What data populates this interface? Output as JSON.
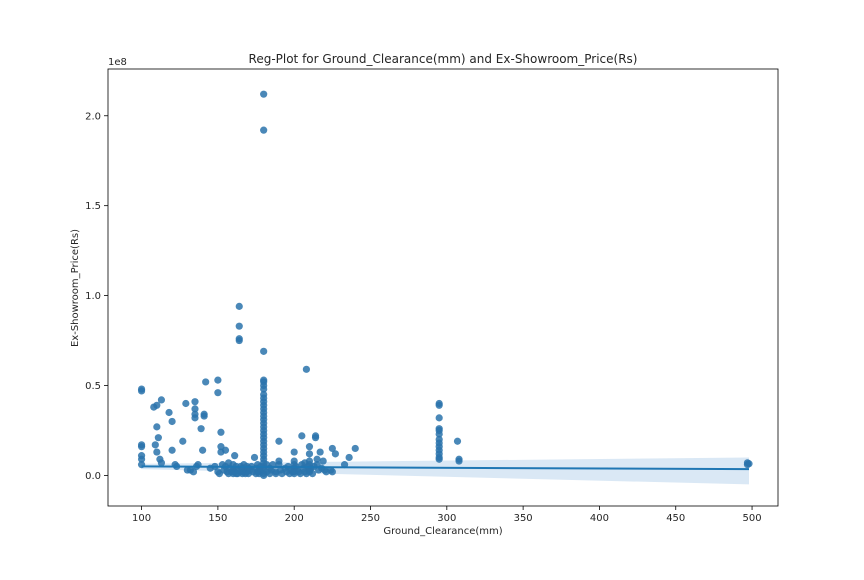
{
  "chart_data": {
    "type": "scatter",
    "title": "Reg-Plot for Ground_Clearance(mm) and Ex-Showroom_Price(Rs)",
    "xlabel": "Ground_Clearance(mm)",
    "ylabel": "Ex-Showroom_Price(Rs)",
    "y_offset_label": "1e8",
    "xlim": [
      78,
      517
    ],
    "ylim": [
      -0.17,
      2.26
    ],
    "x_ticks": [
      100,
      150,
      200,
      250,
      300,
      350,
      400,
      450,
      500
    ],
    "x_tick_labels": [
      "100",
      "150",
      "200",
      "250",
      "300",
      "350",
      "400",
      "450",
      "500"
    ],
    "y_ticks": [
      0.0,
      0.5,
      1.0,
      1.5,
      2.0
    ],
    "y_tick_labels": [
      "0.0",
      "0.5",
      "1.0",
      "1.5",
      "2.0"
    ],
    "grid": false,
    "y_units": "1e8 Rs",
    "point_color": "#2a73ac",
    "line_color": "#1f77b4",
    "band_color": "#c6dbef",
    "regression": {
      "x": [
        100,
        498
      ],
      "y": [
        0.05,
        0.035
      ],
      "ci_lower": [
        0.035,
        -0.05
      ],
      "ci_upper": [
        0.065,
        0.1
      ]
    },
    "points": [
      [
        100,
        0.48
      ],
      [
        100,
        0.47
      ],
      [
        100,
        0.17
      ],
      [
        100,
        0.16
      ],
      [
        100,
        0.11
      ],
      [
        100,
        0.09
      ],
      [
        100,
        0.06
      ],
      [
        108,
        0.38
      ],
      [
        110,
        0.39
      ],
      [
        109,
        0.17
      ],
      [
        110,
        0.13
      ],
      [
        110,
        0.27
      ],
      [
        111,
        0.21
      ],
      [
        112,
        0.09
      ],
      [
        113,
        0.42
      ],
      [
        113,
        0.07
      ],
      [
        118,
        0.35
      ],
      [
        120,
        0.3
      ],
      [
        120,
        0.14
      ],
      [
        122,
        0.06
      ],
      [
        123,
        0.05
      ],
      [
        127,
        0.19
      ],
      [
        129,
        0.4
      ],
      [
        130,
        0.03
      ],
      [
        132,
        0.03
      ],
      [
        134,
        0.02
      ],
      [
        135,
        0.41
      ],
      [
        135,
        0.37
      ],
      [
        135,
        0.34
      ],
      [
        135,
        0.32
      ],
      [
        136,
        0.05
      ],
      [
        137,
        0.06
      ],
      [
        139,
        0.26
      ],
      [
        141,
        0.34
      ],
      [
        141,
        0.33
      ],
      [
        142,
        0.52
      ],
      [
        140,
        0.14
      ],
      [
        145,
        0.04
      ],
      [
        148,
        0.05
      ],
      [
        150,
        0.53
      ],
      [
        150,
        0.46
      ],
      [
        152,
        0.24
      ],
      [
        152,
        0.16
      ],
      [
        152,
        0.13
      ],
      [
        150,
        0.02
      ],
      [
        151,
        0.01
      ],
      [
        153,
        0.06
      ],
      [
        154,
        0.03
      ],
      [
        155,
        0.14
      ],
      [
        155,
        0.05
      ],
      [
        156,
        0.02
      ],
      [
        157,
        0.07
      ],
      [
        157,
        0.01
      ],
      [
        158,
        0.04
      ],
      [
        159,
        0.02
      ],
      [
        160,
        0.03
      ],
      [
        160,
        0.06
      ],
      [
        160,
        0.01
      ],
      [
        161,
        0.11
      ],
      [
        161,
        0.02
      ],
      [
        162,
        0.05
      ],
      [
        162,
        0.01
      ],
      [
        163,
        0.03
      ],
      [
        163,
        0.01
      ],
      [
        164,
        0.94
      ],
      [
        164,
        0.83
      ],
      [
        164,
        0.76
      ],
      [
        164,
        0.75
      ],
      [
        165,
        0.05
      ],
      [
        165,
        0.02
      ],
      [
        166,
        0.04
      ],
      [
        166,
        0.01
      ],
      [
        167,
        0.06
      ],
      [
        167,
        0.02
      ],
      [
        168,
        0.03
      ],
      [
        168,
        0.01
      ],
      [
        169,
        0.05
      ],
      [
        169,
        0.02
      ],
      [
        170,
        0.04
      ],
      [
        170,
        0.01
      ],
      [
        171,
        0.03
      ],
      [
        172,
        0.05
      ],
      [
        173,
        0.02
      ],
      [
        174,
        0.1
      ],
      [
        175,
        0.04
      ],
      [
        175,
        0.01
      ],
      [
        176,
        0.02
      ],
      [
        176,
        0.06
      ],
      [
        177,
        0.03
      ],
      [
        177,
        0.01
      ],
      [
        178,
        0.05
      ],
      [
        178,
        0.02
      ],
      [
        180,
        2.12
      ],
      [
        180,
        1.92
      ],
      [
        180,
        0.69
      ],
      [
        180,
        0.53
      ],
      [
        180,
        0.52
      ],
      [
        180,
        0.5
      ],
      [
        180,
        0.48
      ],
      [
        180,
        0.45
      ],
      [
        180,
        0.43
      ],
      [
        180,
        0.41
      ],
      [
        180,
        0.39
      ],
      [
        180,
        0.37
      ],
      [
        180,
        0.35
      ],
      [
        180,
        0.33
      ],
      [
        180,
        0.31
      ],
      [
        180,
        0.29
      ],
      [
        180,
        0.27
      ],
      [
        180,
        0.25
      ],
      [
        180,
        0.23
      ],
      [
        180,
        0.21
      ],
      [
        180,
        0.19
      ],
      [
        180,
        0.17
      ],
      [
        180,
        0.15
      ],
      [
        180,
        0.13
      ],
      [
        180,
        0.11
      ],
      [
        180,
        0.09
      ],
      [
        180,
        0.07
      ],
      [
        180,
        0.05
      ],
      [
        180,
        0.03
      ],
      [
        180,
        0.01
      ],
      [
        180,
        0.0
      ],
      [
        182,
        0.06
      ],
      [
        182,
        0.02
      ],
      [
        184,
        0.04
      ],
      [
        184,
        0.01
      ],
      [
        185,
        0.03
      ],
      [
        186,
        0.06
      ],
      [
        188,
        0.02
      ],
      [
        188,
        0.01
      ],
      [
        190,
        0.19
      ],
      [
        190,
        0.08
      ],
      [
        190,
        0.06
      ],
      [
        191,
        0.03
      ],
      [
        192,
        0.01
      ],
      [
        194,
        0.04
      ],
      [
        195,
        0.02
      ],
      [
        196,
        0.05
      ],
      [
        197,
        0.01
      ],
      [
        198,
        0.03
      ],
      [
        199,
        0.02
      ],
      [
        200,
        0.13
      ],
      [
        200,
        0.08
      ],
      [
        200,
        0.06
      ],
      [
        200,
        0.04
      ],
      [
        200,
        0.02
      ],
      [
        200,
        0.01
      ],
      [
        201,
        0.05
      ],
      [
        202,
        0.03
      ],
      [
        203,
        0.02
      ],
      [
        204,
        0.01
      ],
      [
        205,
        0.22
      ],
      [
        205,
        0.06
      ],
      [
        206,
        0.04
      ],
      [
        207,
        0.07
      ],
      [
        207,
        0.02
      ],
      [
        208,
        0.59
      ],
      [
        208,
        0.01
      ],
      [
        209,
        0.05
      ],
      [
        210,
        0.16
      ],
      [
        210,
        0.12
      ],
      [
        210,
        0.08
      ],
      [
        210,
        0.06
      ],
      [
        210,
        0.03
      ],
      [
        210,
        0.02
      ],
      [
        211,
        0.04
      ],
      [
        212,
        0.01
      ],
      [
        213,
        0.05
      ],
      [
        214,
        0.22
      ],
      [
        214,
        0.21
      ],
      [
        215,
        0.09
      ],
      [
        215,
        0.06
      ],
      [
        216,
        0.03
      ],
      [
        217,
        0.13
      ],
      [
        218,
        0.04
      ],
      [
        219,
        0.08
      ],
      [
        220,
        0.03
      ],
      [
        221,
        0.02
      ],
      [
        224,
        0.03
      ],
      [
        225,
        0.15
      ],
      [
        225,
        0.02
      ],
      [
        227,
        0.12
      ],
      [
        233,
        0.06
      ],
      [
        236,
        0.1
      ],
      [
        240,
        0.15
      ],
      [
        295,
        0.4
      ],
      [
        295,
        0.39
      ],
      [
        295,
        0.32
      ],
      [
        295,
        0.26
      ],
      [
        295,
        0.25
      ],
      [
        295,
        0.23
      ],
      [
        295,
        0.2
      ],
      [
        295,
        0.18
      ],
      [
        295,
        0.16
      ],
      [
        295,
        0.14
      ],
      [
        295,
        0.12
      ],
      [
        295,
        0.1
      ],
      [
        295,
        0.09
      ],
      [
        307,
        0.19
      ],
      [
        308,
        0.09
      ],
      [
        308,
        0.08
      ],
      [
        497,
        0.07
      ],
      [
        497,
        0.06
      ],
      [
        498,
        0.065
      ]
    ]
  }
}
